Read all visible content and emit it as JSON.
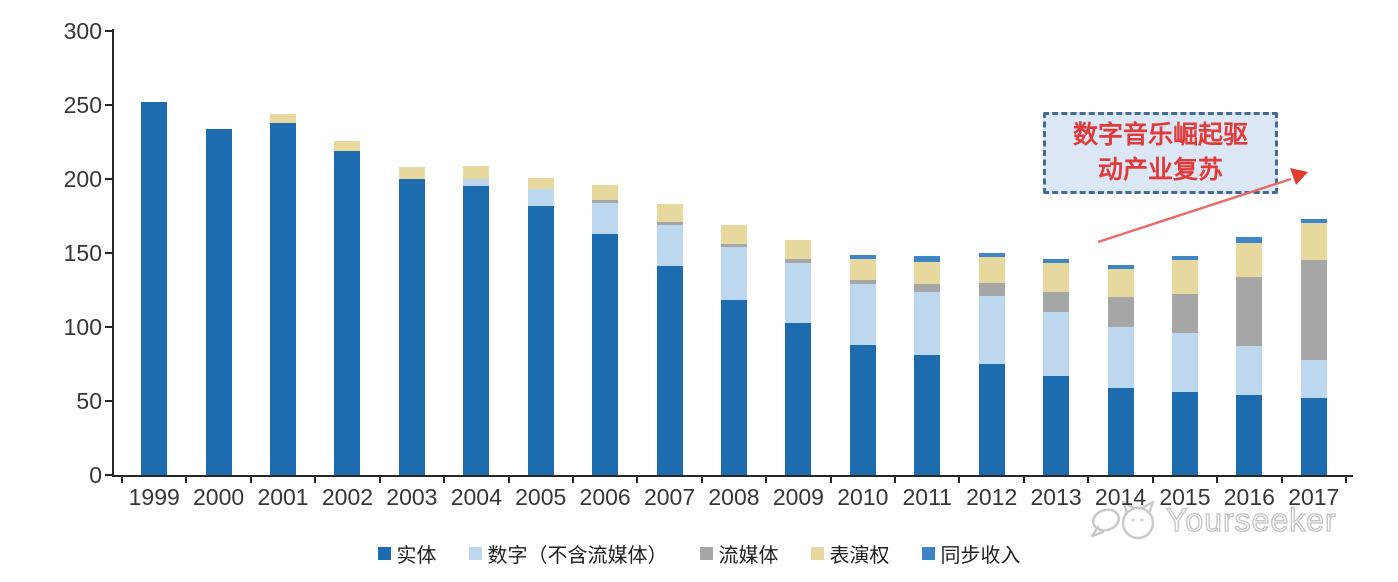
{
  "chart_data": {
    "type": "bar",
    "stacked": true,
    "title": "",
    "xlabel": "",
    "ylabel": "",
    "categories": [
      "1999",
      "2000",
      "2001",
      "2002",
      "2003",
      "2004",
      "2005",
      "2006",
      "2007",
      "2008",
      "2009",
      "2010",
      "2011",
      "2012",
      "2013",
      "2014",
      "2015",
      "2016",
      "2017"
    ],
    "series": [
      {
        "name": "实体",
        "color": "#1E6CB0",
        "values": [
          252,
          234,
          238,
          219,
          200,
          195,
          182,
          163,
          141,
          118,
          103,
          88,
          81,
          75,
          67,
          59,
          56,
          54,
          52
        ]
      },
      {
        "name": "数字（不含流媒体）",
        "color": "#BDD7EE",
        "values": [
          0,
          0,
          0,
          0,
          0,
          5,
          11,
          21,
          28,
          36,
          40,
          41,
          43,
          46,
          43,
          41,
          40,
          33,
          26
        ]
      },
      {
        "name": "流媒体",
        "color": "#A6A6A6",
        "values": [
          0,
          0,
          0,
          0,
          0,
          0,
          0,
          2,
          2,
          2,
          3,
          3,
          5,
          9,
          14,
          20,
          26,
          47,
          67
        ]
      },
      {
        "name": "表演权",
        "color": "#E7D89E",
        "values": [
          0,
          0,
          6,
          7,
          8,
          9,
          8,
          10,
          12,
          13,
          13,
          14,
          15,
          17,
          19,
          19,
          23,
          23,
          25
        ]
      },
      {
        "name": "同步收入",
        "color": "#3D85C6",
        "values": [
          0,
          0,
          0,
          0,
          0,
          0,
          0,
          0,
          0,
          0,
          0,
          3,
          4,
          3,
          3,
          3,
          3,
          4,
          3
        ]
      }
    ],
    "ylim": [
      0,
      300
    ],
    "yticks": [
      0,
      50,
      100,
      150,
      200,
      250,
      300
    ],
    "grid": false,
    "legend_position": "bottom"
  },
  "annotation": {
    "line1": "数字音乐崛起驱",
    "line2": "动产业复苏",
    "full_text": "数字音乐崛起驱动产业复苏"
  },
  "watermark": {
    "text": "Yourseeker"
  }
}
